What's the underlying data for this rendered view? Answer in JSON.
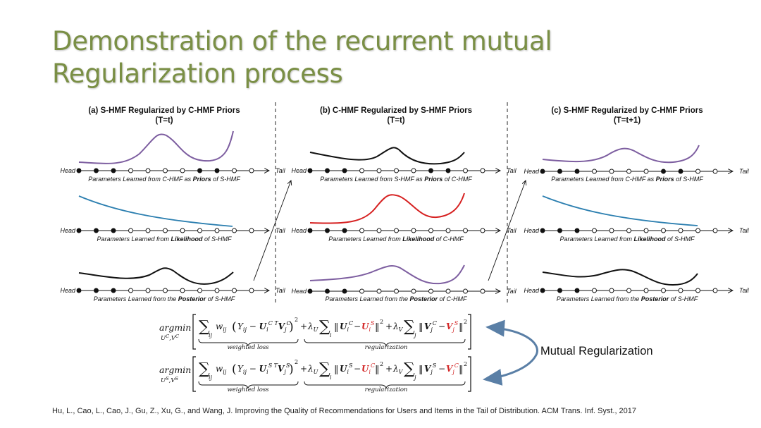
{
  "slide": {
    "title_line1": "Demonstration of the recurrent mutual",
    "title_line2": "Regularization process",
    "title_color": "#7a8f45"
  },
  "panels": [
    {
      "title": "(a) S-HMF Regularized by C-HMF Priors",
      "subtitle": "(T=t)",
      "rows": [
        {
          "head": "Head",
          "tail": "Tail",
          "caption_pre": "Parameters Learned from C-HMF as ",
          "caption_bold": "Priors",
          "caption_post": " of S-HMF",
          "curve_color": "#7d5ea0"
        },
        {
          "head": "Head",
          "tail": "Tail",
          "caption_pre": "Parameters Learned from ",
          "caption_bold": "Likelihood",
          "caption_post": " of S-HMF",
          "curve_color": "#2c7fb0"
        },
        {
          "head": "Head",
          "tail": "Tail",
          "caption_pre": "Parameters Learned from the ",
          "caption_bold": "Posterior",
          "caption_post": " of S-HMF",
          "curve_color": "#111111"
        }
      ]
    },
    {
      "title": "(b) C-HMF Regularized by S-HMF Priors",
      "subtitle": "(T=t)",
      "rows": [
        {
          "head": "Head",
          "tail": "Tail",
          "caption_pre": "Parameters Learned from S-HMF as ",
          "caption_bold": "Priors",
          "caption_post": " of C-HMF",
          "curve_color": "#111111"
        },
        {
          "head": "Head",
          "tail": "Tail",
          "caption_pre": "Parameters Learned from ",
          "caption_bold": "Likelihood",
          "caption_post": " of C-HMF",
          "curve_color": "#d62020"
        },
        {
          "head": "Head",
          "tail": "Tail",
          "caption_pre": "Parameters Learned from the ",
          "caption_bold": "Posterior",
          "caption_post": " of C-HMF",
          "curve_color": "#7d5ea0"
        }
      ]
    },
    {
      "title": "(c) S-HMF Regularized by C-HMF Priors",
      "subtitle": "(T=t+1)",
      "rows": [
        {
          "head": "Head",
          "tail": "Tail",
          "caption_pre": "Parameters Learned from C-HMF as ",
          "caption_bold": "Priors",
          "caption_post": " of S-HMF",
          "curve_color": "#7d5ea0"
        },
        {
          "head": "Head",
          "tail": "Tail",
          "caption_pre": "Parameters Learned from ",
          "caption_bold": "Likelihood",
          "caption_post": " of S-HMF",
          "curve_color": "#2c7fb0"
        },
        {
          "head": "Head",
          "tail": "Tail",
          "caption_pre": "Parameters Learned from the ",
          "caption_bold": "Posterior",
          "caption_post": " of S-HMF",
          "curve_color": "#111111"
        }
      ]
    }
  ],
  "equations": {
    "argmin": "argmin",
    "sub1": "U",
    "sub1_sup": "C",
    "sub1_b": "V",
    "sub1_b_sup": "C",
    "sub2": "U",
    "sub2_sup": "S",
    "sub2_b": "V",
    "sub2_b_sup": "S",
    "label_loss": "weighted loss",
    "label_reg": "regularization",
    "mutual_label": "Mutual Regularization",
    "arrow_color": "#5a7fa6"
  },
  "citation": "Hu, L., Cao, L., Cao, J., Gu, Z., Xu, G., and Wang, J. Improving the Quality of Recommendations for Users and Items in the Tail of Distribution. ACM Trans. Inf. Syst., 2017"
}
